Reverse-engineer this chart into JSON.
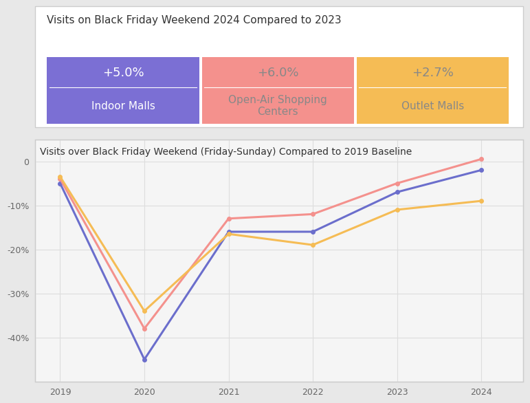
{
  "title_top": "Visits on Black Friday Weekend 2024 Compared to 2023",
  "cards": [
    {
      "pct": "+5.0%",
      "label": "Indoor Malls",
      "color": "#7B6FD4",
      "text_color_pct": "#ffffff",
      "text_color_label": "#ffffff"
    },
    {
      "pct": "+6.0%",
      "label": "Open-Air Shopping\nCenters",
      "color": "#F4918D",
      "text_color_pct": "#888888",
      "text_color_label": "#888888"
    },
    {
      "pct": "+2.7%",
      "label": "Outlet Malls",
      "color": "#F5BC55",
      "text_color_pct": "#888888",
      "text_color_label": "#888888"
    }
  ],
  "title_bottom": "Visits over Black Friday Weekend (Friday-Sunday) Compared to 2019 Baseline",
  "years": [
    2019,
    2020,
    2021,
    2022,
    2023,
    2024
  ],
  "lines": [
    {
      "name": "Indoor Malls",
      "color": "#6B6ECC",
      "values": [
        -5,
        -45,
        -16,
        -16,
        -7,
        -2
      ]
    },
    {
      "name": "Open-Air Shopping Centers",
      "color": "#F4918D",
      "values": [
        -4,
        -38,
        -13,
        -12,
        -5,
        0.5
      ]
    },
    {
      "name": "Outlet Malls",
      "color": "#F5BC55",
      "values": [
        -3.5,
        -34,
        -16.5,
        -19,
        -11,
        -9
      ]
    }
  ],
  "yticks": [
    0,
    -10,
    -20,
    -30,
    -40
  ],
  "ytick_labels": [
    "0",
    "-10%",
    "-20%",
    "-30%",
    "-40%"
  ],
  "ylim": [
    -50,
    5
  ],
  "bg_color": "#e8e8e8",
  "panel_bg": "#f5f5f5",
  "grid_color": "#dddddd"
}
